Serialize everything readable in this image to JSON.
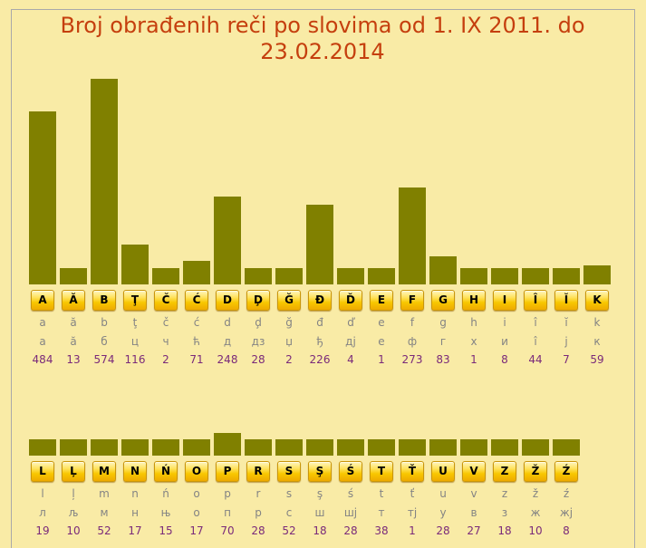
{
  "colors": {
    "page_background": "#f9eba6",
    "title": "#c53f0e",
    "bar": "#808000",
    "letter_button": "#f8c700",
    "transliteration": "#848484",
    "count": "#7a2a7a"
  },
  "chart_data": {
    "type": "bar",
    "title": "Broj obrađenih reči po slovima od 1. IX 2011. do 23.02.2014",
    "panels": [
      {
        "categories": [
          "A",
          "Ă",
          "B",
          "Ţ",
          "Č",
          "Ć",
          "D",
          "Ḑ",
          "Ğ",
          "Đ",
          "Ď",
          "E",
          "F",
          "G",
          "H",
          "I",
          "Î",
          "Ĭ",
          "K"
        ],
        "lowercase": [
          "a",
          "ă",
          "b",
          "ţ",
          "č",
          "ć",
          "d",
          "ḑ",
          "ğ",
          "đ",
          "ď",
          "e",
          "f",
          "g",
          "h",
          "i",
          "î",
          "ĭ",
          "k"
        ],
        "cyrillic": [
          "а",
          "ă",
          "б",
          "ц",
          "ч",
          "ћ",
          "д",
          "дз",
          "џ",
          "ђ",
          "дј",
          "е",
          "ф",
          "г",
          "х",
          "и",
          "î",
          "ј",
          "к"
        ],
        "values": [
          484,
          13,
          574,
          116,
          2,
          71,
          248,
          28,
          2,
          226,
          4,
          1,
          273,
          83,
          1,
          8,
          44,
          7,
          59
        ]
      },
      {
        "categories": [
          "L",
          "Ļ",
          "M",
          "N",
          "Ń",
          "O",
          "P",
          "R",
          "S",
          "Ş",
          "Ś",
          "T",
          "Ť",
          "U",
          "V",
          "Z",
          "Ž",
          "Ź"
        ],
        "lowercase": [
          "l",
          "ļ",
          "m",
          "n",
          "ń",
          "o",
          "p",
          "r",
          "s",
          "ş",
          "ś",
          "t",
          "ť",
          "u",
          "v",
          "z",
          "ž",
          "ź"
        ],
        "cyrillic": [
          "л",
          "љ",
          "м",
          "н",
          "њ",
          "о",
          "п",
          "р",
          "с",
          "ш",
          "шј",
          "т",
          "тј",
          "у",
          "в",
          "з",
          "ж",
          "жј"
        ],
        "values": [
          19,
          10,
          52,
          17,
          15,
          17,
          70,
          28,
          52,
          18,
          28,
          38,
          1,
          28,
          27,
          18,
          10,
          8
        ]
      }
    ]
  }
}
